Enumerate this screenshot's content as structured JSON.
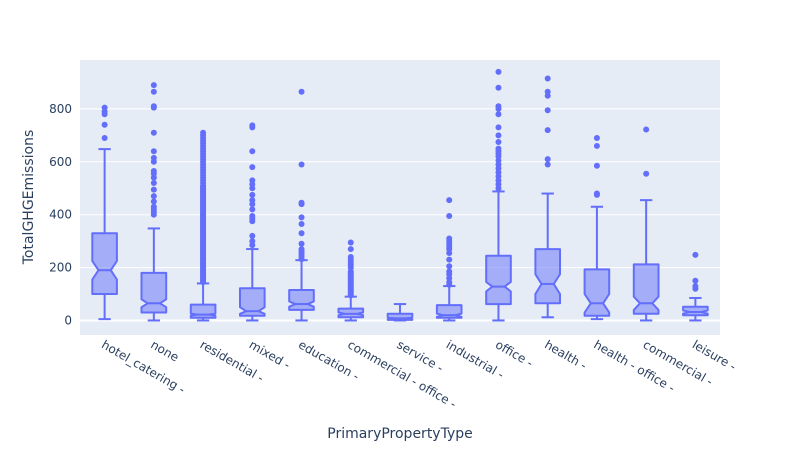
{
  "chart_data": {
    "type": "box",
    "notched": true,
    "xlabel": "PrimaryPropertyType",
    "ylabel": "TotalGHGEmissions",
    "ylim": [
      -55,
      985
    ],
    "y_ticks": [
      0,
      200,
      400,
      600,
      800
    ],
    "grid": true,
    "colors": {
      "background": "#ffffff",
      "plot_bg": "#e5ecf6",
      "grid": "#ffffff",
      "box_line": "#636efa",
      "box_fill": "#636efa",
      "text": "#2a3f5f"
    },
    "categories": [
      {
        "label": "hotel_catering -",
        "min": 5,
        "q1": 100,
        "median": 190,
        "q3": 330,
        "max": 648,
        "notch_low": 155,
        "notch_high": 225,
        "outliers": [
          690,
          740,
          780,
          790,
          805
        ]
      },
      {
        "label": "none",
        "min": 0,
        "q1": 30,
        "median": 65,
        "q3": 180,
        "max": 348,
        "notch_low": 50,
        "notch_high": 80,
        "outliers": [
          400,
          410,
          420,
          430,
          450,
          470,
          495,
          520,
          540,
          555,
          565,
          600,
          615,
          640,
          710,
          805,
          810,
          865,
          890
        ]
      },
      {
        "label": "residential -",
        "min": 0,
        "q1": 10,
        "median": 22,
        "q3": 60,
        "max": 140,
        "notch_low": 18,
        "notch_high": 26,
        "outliers": [
          145,
          150,
          155,
          160,
          165,
          170,
          175,
          180,
          185,
          190,
          195,
          200,
          205,
          210,
          215,
          220,
          225,
          230,
          235,
          240,
          245,
          250,
          255,
          260,
          265,
          270,
          275,
          280,
          285,
          290,
          295,
          300,
          305,
          310,
          315,
          320,
          325,
          330,
          335,
          340,
          345,
          350,
          355,
          360,
          365,
          370,
          375,
          380,
          385,
          390,
          395,
          400,
          405,
          410,
          415,
          420,
          425,
          430,
          435,
          440,
          445,
          450,
          455,
          460,
          465,
          470,
          475,
          480,
          485,
          490,
          495,
          500,
          505,
          510,
          520,
          530,
          540,
          550,
          560,
          570,
          580,
          590,
          600,
          610,
          620,
          630,
          640,
          650,
          660,
          670,
          680,
          690,
          700,
          710
        ]
      },
      {
        "label": "mixed -",
        "min": 0,
        "q1": 18,
        "median": 35,
        "q3": 122,
        "max": 270,
        "notch_low": 25,
        "notch_high": 50,
        "outliers": [
          285,
          300,
          320,
          375,
          385,
          395,
          420,
          440,
          455,
          475,
          500,
          515,
          530,
          580,
          640,
          730,
          738
        ]
      },
      {
        "label": "education -",
        "min": 0,
        "q1": 40,
        "median": 62,
        "q3": 115,
        "max": 228,
        "notch_low": 52,
        "notch_high": 72,
        "outliers": [
          232,
          240,
          248,
          256,
          262,
          270,
          290,
          330,
          365,
          390,
          440,
          445,
          590,
          865
        ]
      },
      {
        "label": "commercial - office -",
        "min": 0,
        "q1": 12,
        "median": 25,
        "q3": 45,
        "max": 90,
        "notch_low": 20,
        "notch_high": 30,
        "outliers": [
          95,
          100,
          105,
          110,
          115,
          120,
          125,
          130,
          135,
          140,
          145,
          150,
          155,
          160,
          165,
          170,
          175,
          180,
          185,
          200,
          210,
          220,
          230,
          240,
          270,
          295
        ]
      },
      {
        "label": "service -",
        "min": 0,
        "q1": 2,
        "median": 8,
        "q3": 25,
        "max": 62,
        "notch_low": 5,
        "notch_high": 12,
        "outliers": []
      },
      {
        "label": "industrial -",
        "min": 0,
        "q1": 10,
        "median": 20,
        "q3": 58,
        "max": 130,
        "notch_low": 14,
        "notch_high": 26,
        "outliers": [
          135,
          145,
          160,
          175,
          185,
          205,
          230,
          255,
          270,
          280,
          290,
          300,
          310,
          395,
          455
        ]
      },
      {
        "label": "office -",
        "min": 0,
        "q1": 62,
        "median": 128,
        "q3": 245,
        "max": 488,
        "notch_low": 110,
        "notch_high": 146,
        "outliers": [
          500,
          515,
          530,
          545,
          560,
          575,
          590,
          605,
          620,
          630,
          640,
          650,
          675,
          700,
          730,
          780,
          800,
          810,
          880,
          940
        ]
      },
      {
        "label": "health -",
        "min": 12,
        "q1": 65,
        "median": 138,
        "q3": 270,
        "max": 480,
        "notch_low": 100,
        "notch_high": 175,
        "outliers": [
          590,
          610,
          720,
          795,
          850,
          865,
          915
        ]
      },
      {
        "label": "health - office -",
        "min": 5,
        "q1": 18,
        "median": 65,
        "q3": 193,
        "max": 430,
        "notch_low": 30,
        "notch_high": 100,
        "outliers": [
          475,
          480,
          585,
          660,
          690
        ]
      },
      {
        "label": "commercial -",
        "min": 0,
        "q1": 25,
        "median": 65,
        "q3": 212,
        "max": 455,
        "notch_low": 40,
        "notch_high": 90,
        "outliers": [
          555,
          722
        ]
      },
      {
        "label": "leisure -",
        "min": 0,
        "q1": 20,
        "median": 32,
        "q3": 52,
        "max": 85,
        "notch_low": 26,
        "notch_high": 38,
        "outliers": [
          120,
          130,
          150,
          248
        ]
      }
    ]
  }
}
